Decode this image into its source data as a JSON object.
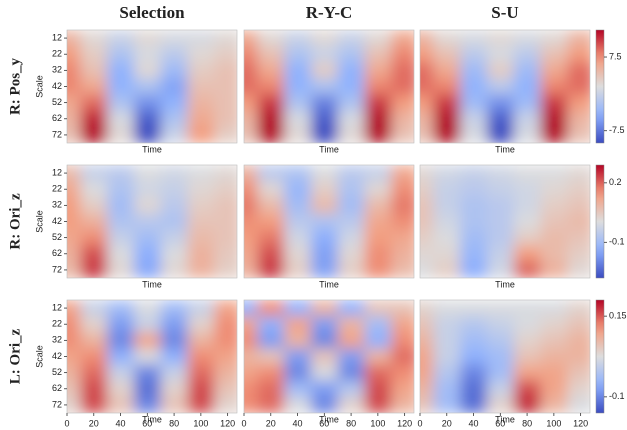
{
  "column_titles": [
    "Selection",
    "R-Y-C",
    "S-U"
  ],
  "row_labels": [
    "R: Pos_y",
    "R: Ori_z",
    "L: Ori_z"
  ],
  "chart_data": [
    {
      "type": "heatmap",
      "x": [
        0,
        20,
        40,
        60,
        80,
        100,
        120
      ],
      "y": [
        12,
        22,
        32,
        42,
        52,
        62,
        72
      ],
      "xlim": [
        0,
        127
      ],
      "ylim": [
        7,
        77
      ],
      "zlim": [
        -10,
        13
      ],
      "x_label": "Time",
      "y_label": "Scale",
      "yticks": [
        12,
        22,
        32,
        42,
        52,
        62,
        72
      ],
      "z": [
        [
          5,
          2,
          0,
          2,
          1,
          1,
          2
        ],
        [
          7,
          3,
          -2,
          1,
          -1,
          2,
          3
        ],
        [
          8,
          4,
          -4,
          2,
          -3,
          3,
          4
        ],
        [
          8,
          6,
          -4,
          -2,
          -5,
          4,
          4
        ],
        [
          6,
          9,
          -2,
          -6,
          -4,
          5,
          4
        ],
        [
          5,
          12,
          1,
          -9,
          -2,
          6,
          4
        ],
        [
          4,
          13,
          2,
          -10,
          0,
          7,
          3
        ]
      ]
    },
    {
      "type": "heatmap",
      "x": [
        0,
        20,
        40,
        60,
        80,
        100,
        120
      ],
      "y": [
        12,
        22,
        32,
        42,
        52,
        62,
        72
      ],
      "xlim": [
        0,
        127
      ],
      "ylim": [
        7,
        77
      ],
      "zlim": [
        -10,
        13
      ],
      "x_label": "Time",
      "z": [
        [
          6,
          2,
          0,
          2,
          0,
          2,
          6
        ],
        [
          8,
          4,
          -2,
          0,
          -2,
          4,
          8
        ],
        [
          9,
          6,
          -4,
          3,
          -4,
          6,
          9
        ],
        [
          9,
          8,
          -4,
          -2,
          -4,
          8,
          9
        ],
        [
          7,
          11,
          -2,
          -7,
          -2,
          11,
          7
        ],
        [
          5,
          13,
          1,
          -9,
          1,
          13,
          5
        ],
        [
          4,
          13,
          2,
          -10,
          2,
          13,
          4
        ]
      ]
    },
    {
      "type": "heatmap",
      "x": [
        0,
        20,
        40,
        60,
        80,
        100,
        120
      ],
      "y": [
        12,
        22,
        32,
        42,
        52,
        62,
        72
      ],
      "xlim": [
        0,
        127
      ],
      "ylim": [
        7,
        77
      ],
      "zlim": [
        -10,
        13
      ],
      "zticks": [
        7.5,
        -7.5
      ],
      "x_label": "Time",
      "z": [
        [
          5,
          2,
          1,
          2,
          1,
          2,
          5
        ],
        [
          7,
          4,
          -1,
          1,
          -1,
          4,
          7
        ],
        [
          9,
          6,
          -3,
          3,
          -3,
          6,
          9
        ],
        [
          9,
          8,
          -4,
          -1,
          -4,
          8,
          9
        ],
        [
          7,
          11,
          -3,
          -6,
          -3,
          11,
          7
        ],
        [
          5,
          13,
          0,
          -9,
          0,
          13,
          5
        ],
        [
          4,
          13,
          1,
          -10,
          1,
          13,
          4
        ]
      ]
    },
    {
      "type": "heatmap",
      "x": [
        0,
        20,
        40,
        60,
        80,
        100,
        120
      ],
      "y": [
        12,
        22,
        32,
        42,
        52,
        62,
        72
      ],
      "xlim": [
        0,
        127
      ],
      "ylim": [
        7,
        77
      ],
      "zlim": [
        -0.28,
        0.29
      ],
      "x_label": "Time",
      "y_label": "Scale",
      "yticks": [
        12,
        22,
        32,
        42,
        52,
        62,
        72
      ],
      "z": [
        [
          0.08,
          -0.04,
          -0.06,
          0,
          -0.02,
          0,
          0.02
        ],
        [
          0.12,
          0,
          -0.08,
          -0.02,
          -0.04,
          0.02,
          0.04
        ],
        [
          0.14,
          0.04,
          -0.1,
          0.02,
          -0.06,
          0.04,
          0.06
        ],
        [
          0.14,
          0.1,
          -0.08,
          -0.06,
          -0.08,
          0.06,
          0.06
        ],
        [
          0.12,
          0.16,
          -0.04,
          -0.1,
          -0.04,
          0.08,
          0.06
        ],
        [
          0.1,
          0.22,
          0,
          -0.14,
          0,
          0.1,
          0.05
        ],
        [
          0.08,
          0.24,
          0.02,
          -0.15,
          0.02,
          0.1,
          0.04
        ]
      ]
    },
    {
      "type": "heatmap",
      "x": [
        0,
        20,
        40,
        60,
        80,
        100,
        120
      ],
      "y": [
        12,
        22,
        32,
        42,
        52,
        62,
        72
      ],
      "xlim": [
        0,
        127
      ],
      "ylim": [
        7,
        77
      ],
      "zlim": [
        -0.28,
        0.29
      ],
      "x_label": "Time",
      "z": [
        [
          0.1,
          -0.06,
          -0.08,
          0,
          -0.06,
          -0.04,
          0.12
        ],
        [
          0.16,
          0.02,
          -0.12,
          0.04,
          -0.08,
          0.02,
          0.16
        ],
        [
          0.18,
          0.08,
          -0.1,
          0.08,
          -0.1,
          0.08,
          0.18
        ],
        [
          0.16,
          0.14,
          -0.06,
          -0.08,
          -0.06,
          0.12,
          0.16
        ],
        [
          0.14,
          0.18,
          -0.02,
          -0.14,
          -0.02,
          0.14,
          0.12
        ],
        [
          0.12,
          0.22,
          0.02,
          -0.16,
          0.02,
          0.16,
          0.1
        ],
        [
          0.1,
          0.24,
          0.04,
          -0.16,
          0.04,
          0.16,
          0.08
        ]
      ]
    },
    {
      "type": "heatmap",
      "x": [
        0,
        20,
        40,
        60,
        80,
        100,
        120
      ],
      "y": [
        12,
        22,
        32,
        42,
        52,
        62,
        72
      ],
      "xlim": [
        0,
        127
      ],
      "ylim": [
        7,
        77
      ],
      "zlim": [
        -0.28,
        0.29
      ],
      "zticks": [
        0.2,
        -0.1
      ],
      "x_label": "Time",
      "z": [
        [
          0.02,
          -0.02,
          -0.04,
          -0.02,
          0,
          0,
          0.02
        ],
        [
          0.04,
          -0.04,
          -0.06,
          -0.04,
          -0.02,
          0.02,
          0.04
        ],
        [
          0.06,
          -0.04,
          -0.08,
          -0.06,
          -0.02,
          0.04,
          0.06
        ],
        [
          0.06,
          -0.02,
          -0.08,
          -0.06,
          0,
          0.06,
          0.08
        ],
        [
          0.04,
          0,
          -0.1,
          -0.06,
          0.04,
          0.08,
          0.06
        ],
        [
          0.02,
          0.02,
          -0.12,
          -0.04,
          0.14,
          0.08,
          0.04
        ],
        [
          0,
          0.04,
          -0.14,
          -0.02,
          0.2,
          0.1,
          0.02
        ]
      ]
    },
    {
      "type": "heatmap",
      "x": [
        0,
        20,
        40,
        60,
        80,
        100,
        120
      ],
      "y": [
        12,
        22,
        32,
        42,
        52,
        62,
        72
      ],
      "xlim": [
        0,
        127
      ],
      "ylim": [
        7,
        77
      ],
      "zlim": [
        -0.15,
        0.2
      ],
      "x_label": "Time",
      "y_label": "Scale",
      "yticks": [
        12,
        22,
        32,
        42,
        52,
        62,
        72
      ],
      "xticks": [
        0,
        20,
        40,
        60,
        80,
        100,
        120
      ],
      "z": [
        [
          0.1,
          0,
          -0.04,
          0.02,
          -0.04,
          0,
          0.1
        ],
        [
          0.12,
          0.04,
          -0.08,
          0,
          -0.08,
          0.04,
          0.12
        ],
        [
          0.12,
          0.08,
          -0.1,
          0.1,
          -0.1,
          0.08,
          0.12
        ],
        [
          0.1,
          0.12,
          -0.06,
          0.02,
          -0.06,
          0.12,
          0.1
        ],
        [
          0.08,
          0.14,
          0,
          -0.1,
          0,
          0.14,
          0.08
        ],
        [
          0.06,
          0.16,
          0.04,
          -0.12,
          0.04,
          0.16,
          0.06
        ],
        [
          0.04,
          0.16,
          0.06,
          -0.1,
          0.06,
          0.16,
          0.04
        ]
      ]
    },
    {
      "type": "heatmap",
      "x": [
        0,
        20,
        40,
        60,
        80,
        100,
        120
      ],
      "y": [
        12,
        22,
        32,
        42,
        52,
        62,
        72
      ],
      "xlim": [
        0,
        127
      ],
      "ylim": [
        7,
        77
      ],
      "zlim": [
        -0.15,
        0.2
      ],
      "x_label": "Time",
      "xticks": [
        0,
        20,
        40,
        60,
        80,
        100,
        120
      ],
      "z": [
        [
          -0.06,
          0.12,
          -0.06,
          0.08,
          -0.06,
          0.06,
          0.06
        ],
        [
          0.1,
          -0.06,
          0.1,
          -0.08,
          0.08,
          -0.04,
          0.1
        ],
        [
          0.12,
          -0.08,
          0.08,
          -0.1,
          0.1,
          -0.06,
          0.12
        ],
        [
          0.08,
          0.06,
          -0.08,
          0.06,
          -0.08,
          0.08,
          0.14
        ],
        [
          0.1,
          0.12,
          -0.1,
          0.02,
          -0.1,
          0.14,
          0.12
        ],
        [
          0.12,
          0.14,
          -0.04,
          -0.08,
          -0.02,
          0.16,
          0.1
        ],
        [
          0.12,
          0.14,
          0.02,
          -0.1,
          0.04,
          0.16,
          0.08
        ]
      ]
    },
    {
      "type": "heatmap",
      "x": [
        0,
        20,
        40,
        60,
        80,
        100,
        120
      ],
      "y": [
        12,
        22,
        32,
        42,
        52,
        62,
        72
      ],
      "xlim": [
        0,
        127
      ],
      "ylim": [
        7,
        77
      ],
      "zlim": [
        -0.15,
        0.2
      ],
      "zticks": [
        0.15,
        -0.1
      ],
      "x_label": "Time",
      "xticks": [
        0,
        20,
        40,
        60,
        80,
        100,
        120
      ],
      "z": [
        [
          0.04,
          0.02,
          0.02,
          0.02,
          0.02,
          0.02,
          0.04
        ],
        [
          0.06,
          0,
          -0.02,
          0,
          0.02,
          0.04,
          0.06
        ],
        [
          0.08,
          0,
          -0.04,
          -0.02,
          0.04,
          0.06,
          0.08
        ],
        [
          0.1,
          0,
          -0.06,
          -0.04,
          0.06,
          0.08,
          0.08
        ],
        [
          0.1,
          -0.02,
          -0.1,
          -0.04,
          0.1,
          0.1,
          0.06
        ],
        [
          0.08,
          -0.04,
          -0.12,
          0,
          0.16,
          0.1,
          0.04
        ],
        [
          0.06,
          -0.04,
          -0.12,
          0.04,
          0.18,
          0.08,
          0.02
        ]
      ]
    }
  ]
}
